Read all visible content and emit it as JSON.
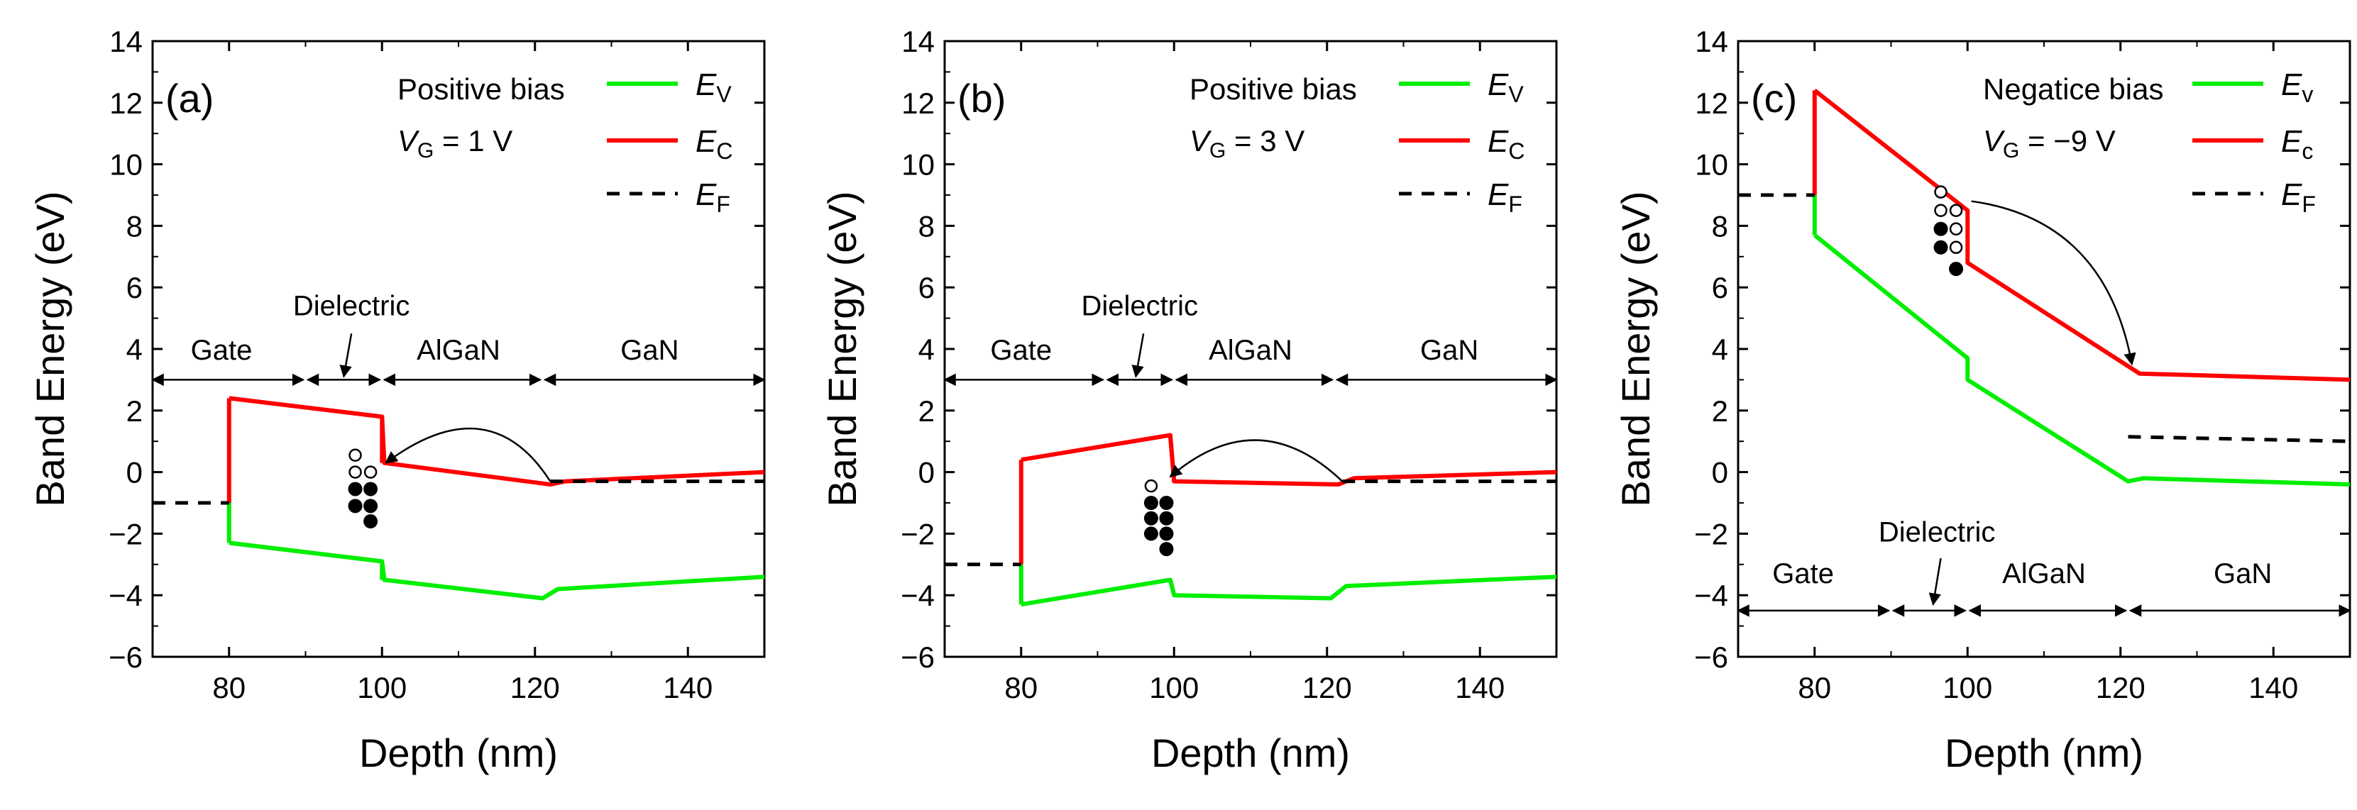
{
  "figure": {
    "description_panels": [
      "(a)",
      "(b)",
      "(c)"
    ]
  },
  "colors": {
    "ev": "#00ee00",
    "ec": "#ff0000",
    "ef": "#000000",
    "axis": "#000000"
  },
  "chart_data": [
    {
      "type": "line",
      "panel_label": "(a)",
      "bias_text": "Positive bias",
      "vg_text": "= 1 V",
      "xlabel": "Depth (nm)",
      "ylabel": "Band Energy (eV)",
      "xlim": [
        70,
        150
      ],
      "ylim": [
        -6,
        14
      ],
      "xticks": [
        80,
        100,
        120,
        140
      ],
      "yticks": [
        -6,
        -4,
        -2,
        0,
        2,
        4,
        6,
        8,
        10,
        12,
        14
      ],
      "legend": [
        {
          "sym": "E",
          "sub": "V",
          "key": "ev"
        },
        {
          "sym": "E",
          "sub": "C",
          "key": "ec"
        },
        {
          "sym": "E",
          "sub": "F",
          "key": "ef"
        }
      ],
      "series": [
        {
          "name": "EV",
          "key": "ev",
          "x": [
            80,
            100,
            100.3,
            121,
            123,
            150
          ],
          "y": [
            -2.3,
            -2.9,
            -3.5,
            -4.1,
            -3.8,
            -3.4
          ]
        },
        {
          "name": "EC",
          "key": "ec",
          "x": [
            80,
            100,
            100.3,
            122,
            124,
            150
          ],
          "y": [
            2.4,
            1.8,
            0.3,
            -0.4,
            -0.3,
            0
          ]
        },
        {
          "name": "EC-gate-step",
          "key": "ec",
          "x": [
            80,
            80
          ],
          "y": [
            -1.0,
            2.4
          ]
        },
        {
          "name": "EV-gate-step",
          "key": "ev",
          "x": [
            80,
            80
          ],
          "y": [
            -2.3,
            -1.0
          ]
        },
        {
          "name": "EC-diel-step",
          "key": "ec",
          "x": [
            100,
            100
          ],
          "y": [
            1.8,
            0.3
          ]
        },
        {
          "name": "EV-diel-step",
          "key": "ev",
          "x": [
            100,
            100
          ],
          "y": [
            -2.9,
            -3.5
          ]
        },
        {
          "name": "EF-gate",
          "key": "ef",
          "dashed": true,
          "x": [
            70,
            80
          ],
          "y": [
            -1.0,
            -1.0
          ]
        },
        {
          "name": "EF-gan",
          "key": "ef",
          "dashed": true,
          "x": [
            122,
            150
          ],
          "y": [
            -0.3,
            -0.3
          ]
        }
      ],
      "regions": {
        "y": 3,
        "bounds": [
          70,
          90,
          100,
          121,
          150
        ],
        "labels": [
          "Gate",
          "AlGaN",
          "GaN"
        ],
        "label_x": [
          79,
          110,
          135
        ],
        "label_y": 3.65,
        "dielectric_label": "Dielectric",
        "dielectric_text_x": 96,
        "dielectric_text_y": 5.1,
        "dielectric_arrow_from": [
          96,
          4.5
        ],
        "dielectric_arrow_to": [
          95,
          3.1
        ]
      },
      "traps": {
        "open": [
          [
            96.5,
            0.55
          ],
          [
            96.5,
            0.0
          ],
          [
            98.5,
            0.0
          ]
        ],
        "filled": [
          [
            96.5,
            -0.55
          ],
          [
            98.5,
            -0.55
          ],
          [
            96.5,
            -1.1
          ],
          [
            98.5,
            -1.1
          ],
          [
            98.5,
            -1.6
          ]
        ]
      },
      "transfer_arrow": {
        "from": [
          122,
          -0.3
        ],
        "to": [
          100.5,
          0.3
        ],
        "ctrl": [
          114,
          2.8
        ]
      }
    },
    {
      "type": "line",
      "panel_label": "(b)",
      "bias_text": "Positive bias",
      "vg_text": "= 3 V",
      "xlabel": "Depth (nm)",
      "ylabel": "Band Energy (eV)",
      "xlim": [
        70,
        150
      ],
      "ylim": [
        -6,
        14
      ],
      "xticks": [
        80,
        100,
        120,
        140
      ],
      "yticks": [
        -6,
        -4,
        -2,
        0,
        2,
        4,
        6,
        8,
        10,
        12,
        14
      ],
      "legend": [
        {
          "sym": "E",
          "sub": "V",
          "key": "ev"
        },
        {
          "sym": "E",
          "sub": "C",
          "key": "ec"
        },
        {
          "sym": "E",
          "sub": "F",
          "key": "ef"
        }
      ],
      "series": [
        {
          "name": "EV",
          "key": "ev",
          "x": [
            80,
            99.5,
            100,
            120.5,
            122.5,
            150
          ],
          "y": [
            -4.3,
            -3.5,
            -4.0,
            -4.1,
            -3.7,
            -3.4
          ]
        },
        {
          "name": "EC",
          "key": "ec",
          "x": [
            80,
            99.5,
            100,
            121.5,
            123.5,
            150
          ],
          "y": [
            0.4,
            1.2,
            -0.3,
            -0.4,
            -0.2,
            0
          ]
        },
        {
          "name": "EC-gate-step",
          "key": "ec",
          "x": [
            80,
            80
          ],
          "y": [
            -3.0,
            0.4
          ]
        },
        {
          "name": "EV-gate-step",
          "key": "ev",
          "x": [
            80,
            80
          ],
          "y": [
            -4.3,
            -3.0
          ]
        },
        {
          "name": "EC-diel-step",
          "key": "ec",
          "x": [
            99.5,
            100
          ],
          "y": [
            1.2,
            -0.3
          ]
        },
        {
          "name": "EV-diel-step",
          "key": "ev",
          "x": [
            99.5,
            100
          ],
          "y": [
            -3.5,
            -4.0
          ]
        },
        {
          "name": "EF-gate",
          "key": "ef",
          "dashed": true,
          "x": [
            70,
            80
          ],
          "y": [
            -3.0,
            -3.0
          ]
        },
        {
          "name": "EF-gan",
          "key": "ef",
          "dashed": true,
          "x": [
            122,
            150
          ],
          "y": [
            -0.3,
            -0.3
          ]
        }
      ],
      "regions": {
        "y": 3,
        "bounds": [
          70,
          91,
          100,
          121,
          150
        ],
        "labels": [
          "Gate",
          "AlGaN",
          "GaN"
        ],
        "label_x": [
          80,
          110,
          136
        ],
        "label_y": 3.65,
        "dielectric_label": "Dielectric",
        "dielectric_text_x": 95.5,
        "dielectric_text_y": 5.1,
        "dielectric_arrow_from": [
          96,
          4.5
        ],
        "dielectric_arrow_to": [
          95,
          3.1
        ]
      },
      "traps": {
        "open": [
          [
            97,
            -0.45
          ]
        ],
        "filled": [
          [
            97,
            -1.0
          ],
          [
            99,
            -1.0
          ],
          [
            97,
            -1.5
          ],
          [
            99,
            -1.5
          ],
          [
            97,
            -2.0
          ],
          [
            99,
            -2.0
          ],
          [
            99,
            -2.5
          ]
        ]
      },
      "transfer_arrow": {
        "from": [
          122,
          -0.3
        ],
        "to": [
          99.5,
          -0.15
        ],
        "ctrl": [
          111,
          2.3
        ]
      }
    },
    {
      "type": "line",
      "panel_label": "(c)",
      "bias_text": "Negatice bias",
      "vg_text": "= −9 V",
      "xlabel": "Depth (nm)",
      "ylabel": "Band Energy (eV)",
      "xlim": [
        70,
        150
      ],
      "ylim": [
        -6,
        14
      ],
      "xticks": [
        80,
        100,
        120,
        140
      ],
      "yticks": [
        -6,
        -4,
        -2,
        0,
        2,
        4,
        6,
        8,
        10,
        12,
        14
      ],
      "legend": [
        {
          "sym": "E",
          "sub": "v",
          "key": "ev"
        },
        {
          "sym": "E",
          "sub": "c",
          "key": "ec"
        },
        {
          "sym": "E",
          "sub": "F",
          "key": "ef"
        }
      ],
      "series": [
        {
          "name": "EV",
          "key": "ev",
          "x": [
            80,
            100,
            100,
            121,
            123,
            150
          ],
          "y": [
            7.7,
            3.7,
            3.0,
            -0.3,
            -0.2,
            -0.4
          ]
        },
        {
          "name": "EC",
          "key": "ec",
          "x": [
            80,
            100,
            100,
            122.5,
            150
          ],
          "y": [
            12.4,
            8.5,
            6.8,
            3.2,
            3.0
          ]
        },
        {
          "name": "EC-gate-step",
          "key": "ec",
          "x": [
            80,
            80
          ],
          "y": [
            9.0,
            12.4
          ]
        },
        {
          "name": "EV-gate-step",
          "key": "ev",
          "x": [
            80,
            80
          ],
          "y": [
            7.7,
            9.0
          ]
        },
        {
          "name": "EF-gate",
          "key": "ef",
          "dashed": true,
          "x": [
            70,
            80
          ],
          "y": [
            9.0,
            9.0
          ]
        },
        {
          "name": "EF-gan",
          "key": "ef",
          "dashed": true,
          "x": [
            121,
            150
          ],
          "y": [
            1.15,
            1.0
          ]
        }
      ],
      "regions": {
        "y": -4.5,
        "bounds": [
          70,
          90,
          100,
          121,
          150
        ],
        "labels": [
          "Gate",
          "AlGaN",
          "GaN"
        ],
        "label_x": [
          78.5,
          110,
          136
        ],
        "label_y": -3.6,
        "dielectric_label": "Dielectric",
        "dielectric_text_x": 96,
        "dielectric_text_y": -2.25,
        "dielectric_arrow_from": [
          96.5,
          -2.8
        ],
        "dielectric_arrow_to": [
          95.5,
          -4.3
        ]
      },
      "traps": {
        "open": [
          [
            96.5,
            9.1
          ],
          [
            96.5,
            8.5
          ],
          [
            98.5,
            8.5
          ],
          [
            98.5,
            7.9
          ],
          [
            98.5,
            7.3
          ]
        ],
        "filled": [
          [
            96.5,
            7.9
          ],
          [
            96.5,
            7.3
          ],
          [
            98.5,
            6.6
          ]
        ]
      },
      "transfer_arrow": {
        "from": [
          100.5,
          8.8
        ],
        "to": [
          121.5,
          3.5
        ],
        "ctrl": [
          118,
          8.2
        ]
      }
    }
  ]
}
